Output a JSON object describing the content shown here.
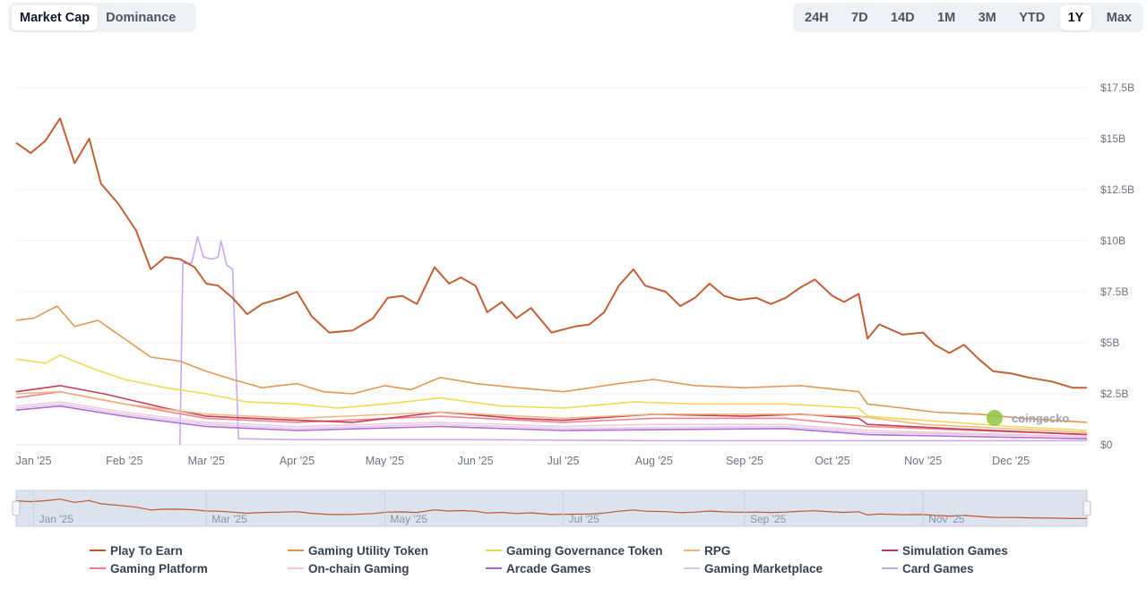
{
  "tabs": {
    "metric": [
      {
        "label": "Market Cap",
        "active": true
      },
      {
        "label": "Dominance",
        "active": false
      }
    ],
    "range": [
      {
        "label": "24H",
        "active": false
      },
      {
        "label": "7D",
        "active": false
      },
      {
        "label": "14D",
        "active": false
      },
      {
        "label": "1M",
        "active": false
      },
      {
        "label": "3M",
        "active": false
      },
      {
        "label": "YTD",
        "active": false
      },
      {
        "label": "1Y",
        "active": true
      },
      {
        "label": "Max",
        "active": false
      }
    ]
  },
  "watermark": "coingecko",
  "chart_data": {
    "type": "line",
    "xlabel": "",
    "ylabel": "",
    "x_ticks": [
      "Jan '25",
      "Feb '25",
      "Mar '25",
      "Apr '25",
      "May '25",
      "Jun '25",
      "Jul '25",
      "Aug '25",
      "Sep '25",
      "Oct '25",
      "Nov '25",
      "Dec '25"
    ],
    "y_ticks": [
      "$0",
      "$2.5B",
      "$5B",
      "$7.5B",
      "$10B",
      "$12.5B",
      "$15B",
      "$17.5B"
    ],
    "y_unit": "USD billions",
    "ylim": [
      0,
      17.5
    ],
    "xlim": [
      "2024-12-26",
      "2025-12-27"
    ],
    "grid": true,
    "legend_position": "bottom",
    "navigator_ticks": [
      "Jan '25",
      "Mar '25",
      "May '25",
      "Jul '25",
      "Sep '25",
      "Nov '25"
    ],
    "series": [
      {
        "name": "Play To Earn",
        "color": "#c0562a",
        "points": [
          [
            "2024-12-26",
            14.8
          ],
          [
            "2024-12-31",
            14.3
          ],
          [
            "2025-01-05",
            14.9
          ],
          [
            "2025-01-10",
            16.0
          ],
          [
            "2025-01-15",
            13.8
          ],
          [
            "2025-01-20",
            15.0
          ],
          [
            "2025-01-24",
            12.8
          ],
          [
            "2025-01-30",
            11.8
          ],
          [
            "2025-02-05",
            10.5
          ],
          [
            "2025-02-10",
            8.6
          ],
          [
            "2025-02-15",
            9.2
          ],
          [
            "2025-02-20",
            9.1
          ],
          [
            "2025-02-25",
            8.7
          ],
          [
            "2025-03-01",
            7.9
          ],
          [
            "2025-03-05",
            7.8
          ],
          [
            "2025-03-10",
            7.2
          ],
          [
            "2025-03-15",
            6.4
          ],
          [
            "2025-03-20",
            6.9
          ],
          [
            "2025-03-27",
            7.2
          ],
          [
            "2025-04-01",
            7.5
          ],
          [
            "2025-04-06",
            6.3
          ],
          [
            "2025-04-12",
            5.5
          ],
          [
            "2025-04-20",
            5.6
          ],
          [
            "2025-04-27",
            6.2
          ],
          [
            "2025-05-02",
            7.2
          ],
          [
            "2025-05-07",
            7.3
          ],
          [
            "2025-05-12",
            6.9
          ],
          [
            "2025-05-18",
            8.7
          ],
          [
            "2025-05-23",
            7.9
          ],
          [
            "2025-05-27",
            8.2
          ],
          [
            "2025-06-01",
            7.8
          ],
          [
            "2025-06-05",
            6.5
          ],
          [
            "2025-06-10",
            7.0
          ],
          [
            "2025-06-15",
            6.2
          ],
          [
            "2025-06-20",
            6.7
          ],
          [
            "2025-06-27",
            5.5
          ],
          [
            "2025-07-05",
            5.8
          ],
          [
            "2025-07-10",
            5.9
          ],
          [
            "2025-07-15",
            6.5
          ],
          [
            "2025-07-20",
            7.8
          ],
          [
            "2025-07-25",
            8.6
          ],
          [
            "2025-07-29",
            7.8
          ],
          [
            "2025-08-05",
            7.5
          ],
          [
            "2025-08-10",
            6.8
          ],
          [
            "2025-08-15",
            7.2
          ],
          [
            "2025-08-20",
            7.9
          ],
          [
            "2025-08-25",
            7.3
          ],
          [
            "2025-08-30",
            7.1
          ],
          [
            "2025-09-05",
            7.2
          ],
          [
            "2025-09-10",
            6.9
          ],
          [
            "2025-09-15",
            7.2
          ],
          [
            "2025-09-20",
            7.7
          ],
          [
            "2025-09-25",
            8.1
          ],
          [
            "2025-10-01",
            7.3
          ],
          [
            "2025-10-05",
            7.0
          ],
          [
            "2025-10-10",
            7.4
          ],
          [
            "2025-10-13",
            5.2
          ],
          [
            "2025-10-17",
            5.9
          ],
          [
            "2025-10-25",
            5.4
          ],
          [
            "2025-11-01",
            5.5
          ],
          [
            "2025-11-05",
            4.9
          ],
          [
            "2025-11-10",
            4.5
          ],
          [
            "2025-11-15",
            4.9
          ],
          [
            "2025-11-20",
            4.2
          ],
          [
            "2025-11-25",
            3.6
          ],
          [
            "2025-12-01",
            3.5
          ],
          [
            "2025-12-07",
            3.3
          ],
          [
            "2025-12-15",
            3.1
          ],
          [
            "2025-12-22",
            2.8
          ],
          [
            "2025-12-27",
            2.8
          ]
        ]
      },
      {
        "name": "Gaming Utility Token",
        "color": "#e0924a",
        "points": [
          [
            "2024-12-26",
            6.1
          ],
          [
            "2025-01-01",
            6.2
          ],
          [
            "2025-01-09",
            6.8
          ],
          [
            "2025-01-15",
            5.8
          ],
          [
            "2025-01-23",
            6.1
          ],
          [
            "2025-02-01",
            5.2
          ],
          [
            "2025-02-10",
            4.3
          ],
          [
            "2025-02-20",
            4.1
          ],
          [
            "2025-03-01",
            3.6
          ],
          [
            "2025-03-10",
            3.2
          ],
          [
            "2025-03-20",
            2.8
          ],
          [
            "2025-04-01",
            3.0
          ],
          [
            "2025-04-10",
            2.6
          ],
          [
            "2025-04-20",
            2.5
          ],
          [
            "2025-05-01",
            2.9
          ],
          [
            "2025-05-10",
            2.7
          ],
          [
            "2025-05-20",
            3.3
          ],
          [
            "2025-06-01",
            3.0
          ],
          [
            "2025-06-15",
            2.8
          ],
          [
            "2025-07-01",
            2.6
          ],
          [
            "2025-07-20",
            3.0
          ],
          [
            "2025-08-01",
            3.2
          ],
          [
            "2025-08-15",
            2.9
          ],
          [
            "2025-09-01",
            2.8
          ],
          [
            "2025-09-20",
            2.9
          ],
          [
            "2025-10-10",
            2.6
          ],
          [
            "2025-10-13",
            2.0
          ],
          [
            "2025-10-25",
            1.8
          ],
          [
            "2025-11-05",
            1.6
          ],
          [
            "2025-11-20",
            1.5
          ],
          [
            "2025-12-05",
            1.3
          ],
          [
            "2025-12-27",
            1.1
          ]
        ]
      },
      {
        "name": "Gaming Governance Token",
        "color": "#f2d74a",
        "points": [
          [
            "2024-12-26",
            4.2
          ],
          [
            "2025-01-05",
            4.0
          ],
          [
            "2025-01-10",
            4.4
          ],
          [
            "2025-01-20",
            3.8
          ],
          [
            "2025-02-01",
            3.2
          ],
          [
            "2025-02-15",
            2.8
          ],
          [
            "2025-03-01",
            2.5
          ],
          [
            "2025-03-15",
            2.1
          ],
          [
            "2025-04-01",
            2.0
          ],
          [
            "2025-04-15",
            1.8
          ],
          [
            "2025-05-01",
            2.0
          ],
          [
            "2025-05-20",
            2.3
          ],
          [
            "2025-06-10",
            1.9
          ],
          [
            "2025-07-01",
            1.8
          ],
          [
            "2025-07-25",
            2.1
          ],
          [
            "2025-08-15",
            2.0
          ],
          [
            "2025-09-15",
            2.0
          ],
          [
            "2025-10-10",
            1.8
          ],
          [
            "2025-10-13",
            1.4
          ],
          [
            "2025-11-01",
            1.2
          ],
          [
            "2025-12-01",
            0.9
          ],
          [
            "2025-12-27",
            0.7
          ]
        ]
      },
      {
        "name": "RPG",
        "color": "#f0b27a",
        "points": [
          [
            "2024-12-26",
            2.5
          ],
          [
            "2025-01-10",
            2.6
          ],
          [
            "2025-02-01",
            2.0
          ],
          [
            "2025-03-01",
            1.5
          ],
          [
            "2025-04-01",
            1.3
          ],
          [
            "2025-05-20",
            1.6
          ],
          [
            "2025-07-01",
            1.3
          ],
          [
            "2025-08-01",
            1.5
          ],
          [
            "2025-09-15",
            1.5
          ],
          [
            "2025-10-10",
            1.4
          ],
          [
            "2025-11-01",
            1.0
          ],
          [
            "2025-12-27",
            0.6
          ]
        ]
      },
      {
        "name": "Simulation Games",
        "color": "#c2334f",
        "points": [
          [
            "2024-12-26",
            2.6
          ],
          [
            "2025-01-10",
            2.9
          ],
          [
            "2025-01-25",
            2.5
          ],
          [
            "2025-02-15",
            1.8
          ],
          [
            "2025-03-01",
            1.4
          ],
          [
            "2025-04-01",
            1.2
          ],
          [
            "2025-04-20",
            1.1
          ],
          [
            "2025-05-20",
            1.6
          ],
          [
            "2025-06-15",
            1.3
          ],
          [
            "2025-07-01",
            1.2
          ],
          [
            "2025-08-01",
            1.5
          ],
          [
            "2025-09-01",
            1.4
          ],
          [
            "2025-09-20",
            1.5
          ],
          [
            "2025-10-10",
            1.3
          ],
          [
            "2025-10-13",
            1.0
          ],
          [
            "2025-11-10",
            0.8
          ],
          [
            "2025-12-27",
            0.5
          ]
        ]
      },
      {
        "name": "Gaming Platform",
        "color": "#f07a8a",
        "points": [
          [
            "2024-12-26",
            2.3
          ],
          [
            "2025-01-10",
            2.6
          ],
          [
            "2025-02-01",
            2.0
          ],
          [
            "2025-03-01",
            1.3
          ],
          [
            "2025-04-01",
            1.1
          ],
          [
            "2025-05-20",
            1.4
          ],
          [
            "2025-07-01",
            1.1
          ],
          [
            "2025-08-01",
            1.3
          ],
          [
            "2025-09-15",
            1.3
          ],
          [
            "2025-10-13",
            0.9
          ],
          [
            "2025-12-27",
            0.5
          ]
        ]
      },
      {
        "name": "On-chain Gaming",
        "color": "#f6c6d6",
        "points": [
          [
            "2024-12-26",
            1.9
          ],
          [
            "2025-01-10",
            2.1
          ],
          [
            "2025-02-01",
            1.6
          ],
          [
            "2025-03-01",
            1.1
          ],
          [
            "2025-04-01",
            0.9
          ],
          [
            "2025-05-20",
            1.1
          ],
          [
            "2025-07-01",
            0.9
          ],
          [
            "2025-08-01",
            1.0
          ],
          [
            "2025-09-15",
            1.0
          ],
          [
            "2025-10-13",
            0.7
          ],
          [
            "2025-12-27",
            0.4
          ]
        ]
      },
      {
        "name": "Arcade Games",
        "color": "#b15fd0",
        "points": [
          [
            "2024-12-26",
            1.7
          ],
          [
            "2025-01-10",
            1.9
          ],
          [
            "2025-02-01",
            1.4
          ],
          [
            "2025-03-01",
            0.9
          ],
          [
            "2025-04-01",
            0.7
          ],
          [
            "2025-05-20",
            0.9
          ],
          [
            "2025-07-01",
            0.7
          ],
          [
            "2025-09-15",
            0.8
          ],
          [
            "2025-10-13",
            0.5
          ],
          [
            "2025-12-27",
            0.3
          ]
        ]
      },
      {
        "name": "Gaming Marketplace",
        "color": "#d8c6ee",
        "points": [
          [
            "2024-12-26",
            1.8
          ],
          [
            "2025-01-10",
            2.0
          ],
          [
            "2025-02-01",
            1.5
          ],
          [
            "2025-03-01",
            1.0
          ],
          [
            "2025-04-01",
            0.8
          ],
          [
            "2025-05-20",
            1.0
          ],
          [
            "2025-07-01",
            0.8
          ],
          [
            "2025-09-15",
            0.9
          ],
          [
            "2025-10-13",
            0.6
          ],
          [
            "2025-12-27",
            0.4
          ]
        ]
      },
      {
        "name": "Card Games",
        "color": "#c9a3ef",
        "points": [
          [
            "2025-02-20",
            0.0
          ],
          [
            "2025-02-21",
            8.9
          ],
          [
            "2025-02-24",
            8.9
          ],
          [
            "2025-02-26",
            10.2
          ],
          [
            "2025-02-28",
            9.2
          ],
          [
            "2025-03-03",
            9.1
          ],
          [
            "2025-03-05",
            9.2
          ],
          [
            "2025-03-06",
            10.0
          ],
          [
            "2025-03-08",
            8.8
          ],
          [
            "2025-03-10",
            8.6
          ],
          [
            "2025-03-12",
            0.3
          ],
          [
            "2025-04-01",
            0.25
          ],
          [
            "2025-06-01",
            0.25
          ],
          [
            "2025-08-01",
            0.2
          ],
          [
            "2025-10-01",
            0.2
          ],
          [
            "2025-12-27",
            0.2
          ]
        ]
      }
    ]
  }
}
